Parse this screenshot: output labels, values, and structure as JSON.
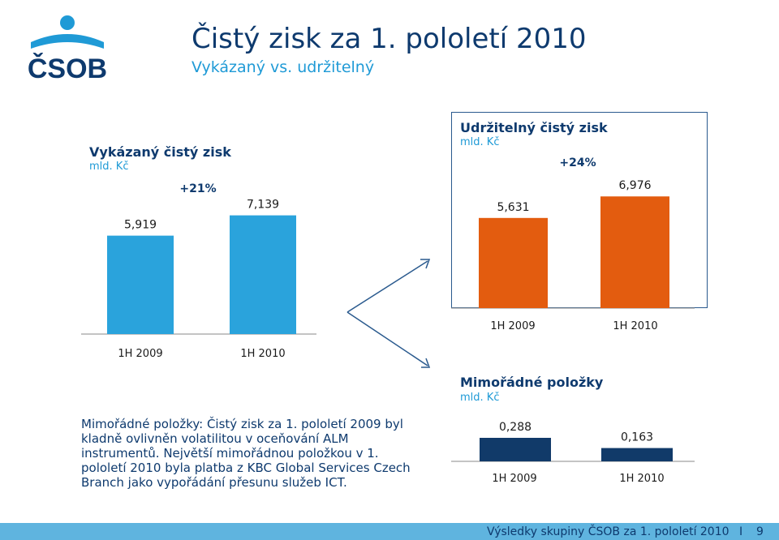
{
  "header": {
    "title": "Čistý zisk za 1. pololetí 2010",
    "subtitle": "Vykázaný vs. udržitelný",
    "logo_text": "ČSOB"
  },
  "colors": {
    "reported": "#2aa3dc",
    "sustainable": "#e35c0f",
    "extraordinary": "#113a69",
    "title": "#0e3a6e",
    "accent": "#1f9ad6"
  },
  "chart_data": [
    {
      "type": "bar",
      "title": "Vykázaný čistý zisk",
      "unit": "mld. Kč",
      "categories": [
        "1H 2009",
        "1H 2010"
      ],
      "values": [
        5.919,
        7.139
      ],
      "value_labels": [
        "5,919",
        "7,139"
      ],
      "growth_label": "+21%",
      "ylim": [
        0,
        7.9
      ]
    },
    {
      "type": "bar",
      "title": "Udržitelný čistý zisk",
      "unit": "mld. Kč",
      "categories": [
        "1H 2009",
        "1H 2010"
      ],
      "values": [
        5.631,
        6.976
      ],
      "value_labels": [
        "5,631",
        "6,976"
      ],
      "growth_label": "+24%",
      "ylim": [
        0,
        7.9
      ]
    },
    {
      "type": "bar",
      "title": "Mimořádné položky",
      "unit": "mld. Kč",
      "categories": [
        "1H 2009",
        "1H 2010"
      ],
      "values": [
        0.288,
        0.163
      ],
      "value_labels": [
        "0,288",
        "0,163"
      ],
      "ylim": [
        0,
        0.288
      ]
    }
  ],
  "note": "Mimořádné položky: Čistý zisk za 1. pololetí 2009 byl kladně ovlivněn volatilitou v oceňování ALM instrumentů. Největší mimořádnou položkou v 1. pololetí 2010 byla platba z KBC Global Services Czech Branch jako vypořádání přesunu služeb ICT.",
  "footer": {
    "text": "Výsledky skupiny ČSOB za 1. pololetí 2010",
    "separator": "I",
    "page": "9"
  }
}
